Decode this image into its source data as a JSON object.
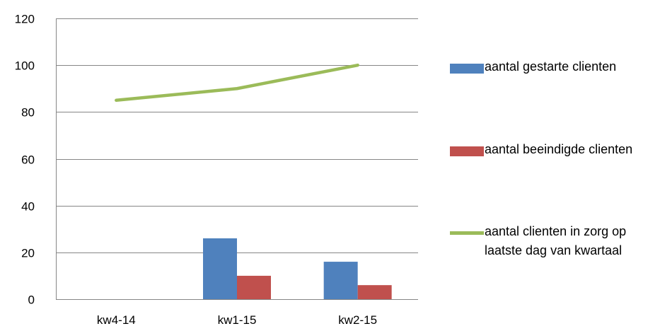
{
  "chart_data": {
    "type": "bar",
    "categories": [
      "kw4-14",
      "kw1-15",
      "kw2-15"
    ],
    "y_ticks": [
      "0",
      "20",
      "40",
      "60",
      "80",
      "100",
      "120"
    ],
    "ylim": [
      0,
      120
    ],
    "grid": true,
    "legend_position": "right",
    "series": [
      {
        "name": "aantal gestarte clienten",
        "kind": "bar",
        "color": "#4F81BD",
        "values": [
          0,
          26,
          16
        ]
      },
      {
        "name": "aantal beeindigde clienten",
        "kind": "bar",
        "color": "#C0504D",
        "values": [
          0,
          10,
          6
        ]
      },
      {
        "name": "aantal clienten in zorg op laatste dag van kwartaal",
        "kind": "line",
        "color": "#9BBB59",
        "values": [
          85,
          90,
          100
        ]
      }
    ]
  }
}
